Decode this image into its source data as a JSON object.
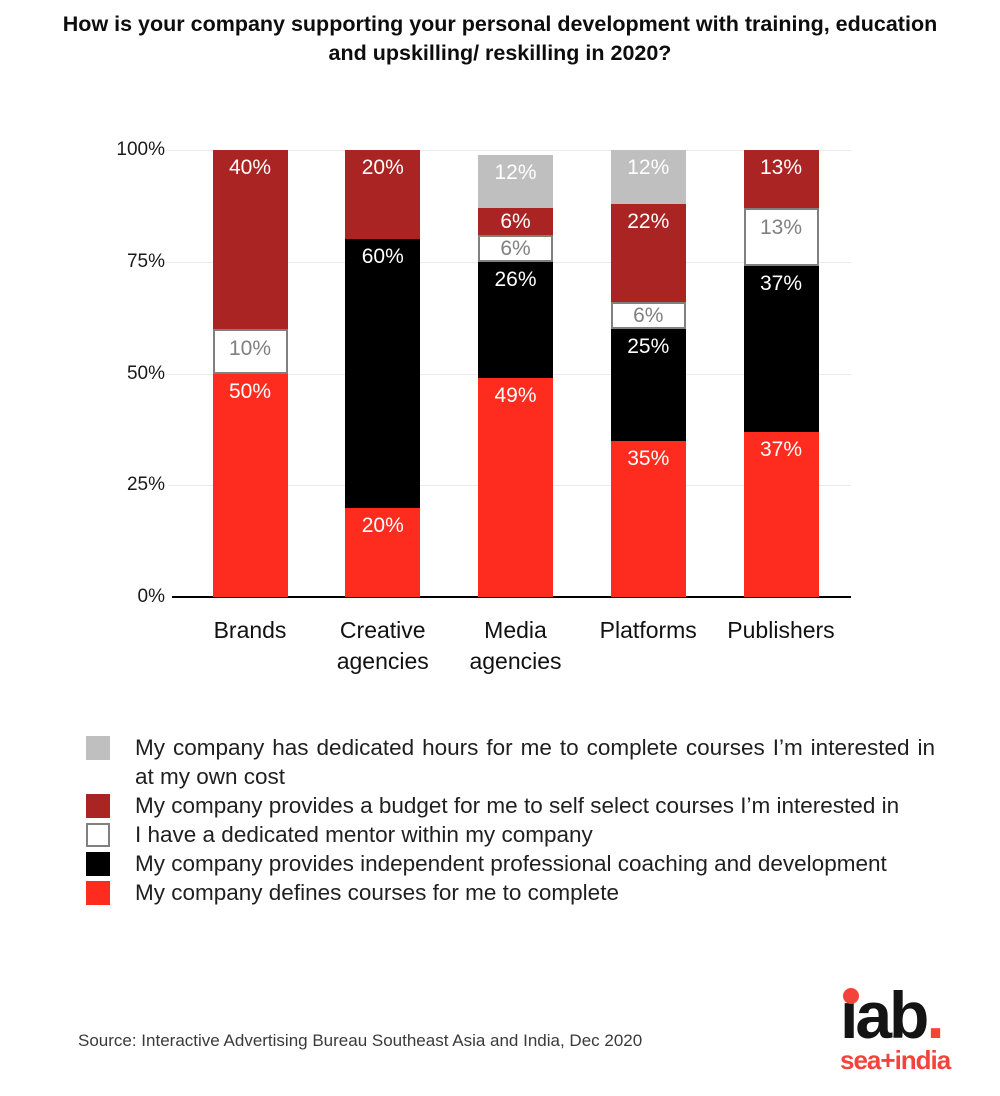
{
  "title": "How is your company supporting your personal development with training, education and upskilling/ reskilling in 2020?",
  "colors": {
    "defined_courses": "#FD2C1E",
    "coaching": "#000000",
    "mentor": "#FFFFFF",
    "mentor_border": "#808080",
    "budget": "#A92422",
    "dedicated_hours": "#BFBFBF",
    "label_on_dark": "#FFFFFF",
    "label_on_light": "#808080",
    "gridline": "#EAEAEA",
    "axis": "#000000",
    "logo_red": "#F4433B"
  },
  "chart_data": {
    "type": "bar",
    "stacked": true,
    "title": "How is your company supporting your personal development with training, education and upskilling/ reskilling in 2020?",
    "categories": [
      "Brands",
      "Creative agencies",
      "Media agencies",
      "Platforms",
      "Publishers"
    ],
    "series": [
      {
        "name": "My company defines courses for me to complete",
        "color_key": "defined_courses",
        "label_color_key": "label_on_dark",
        "values": [
          50,
          20,
          49,
          35,
          37
        ]
      },
      {
        "name": "My company provides independent professional coaching and development",
        "color_key": "coaching",
        "label_color_key": "label_on_dark",
        "values": [
          0,
          60,
          26,
          25,
          37
        ]
      },
      {
        "name": "I have a dedicated mentor within my company",
        "color_key": "mentor",
        "border_key": "mentor_border",
        "label_color_key": "label_on_light",
        "values": [
          10,
          0,
          6,
          6,
          13
        ]
      },
      {
        "name": "My company provides a budget for me to self select courses I’m interested in",
        "color_key": "budget",
        "label_color_key": "label_on_dark",
        "values": [
          40,
          20,
          6,
          22,
          13
        ]
      },
      {
        "name": "My company has dedicated hours for me to complete courses I’m interested in at my own cost",
        "color_key": "dedicated_hours",
        "label_color_key": "label_on_dark",
        "values": [
          0,
          0,
          12,
          12,
          0
        ]
      }
    ],
    "value_suffix": "%",
    "y_ticks": [
      "100%",
      "75%",
      "50%",
      "25%",
      "0%"
    ],
    "ylim": [
      0,
      100
    ],
    "grid": true,
    "legend_position": "bottom"
  },
  "legend": {
    "items": [
      {
        "label": "My company has dedicated hours for me to complete courses I’m interested in at my own cost",
        "color_key": "dedicated_hours"
      },
      {
        "label": "My company provides a budget for me to self select courses I’m interested in",
        "color_key": "budget"
      },
      {
        "label": "I have a dedicated mentor within my company",
        "color_key": "mentor",
        "border_key": "mentor_border"
      },
      {
        "label": "My company provides independent professional coaching and development",
        "color_key": "coaching"
      },
      {
        "label": "My company defines courses for me to complete",
        "color_key": "defined_courses"
      }
    ]
  },
  "source": "Source: Interactive Advertising Bureau Southeast Asia and India, Dec 2020",
  "logo": {
    "text": "iab",
    "dot": ".",
    "subtext": "sea+india"
  }
}
